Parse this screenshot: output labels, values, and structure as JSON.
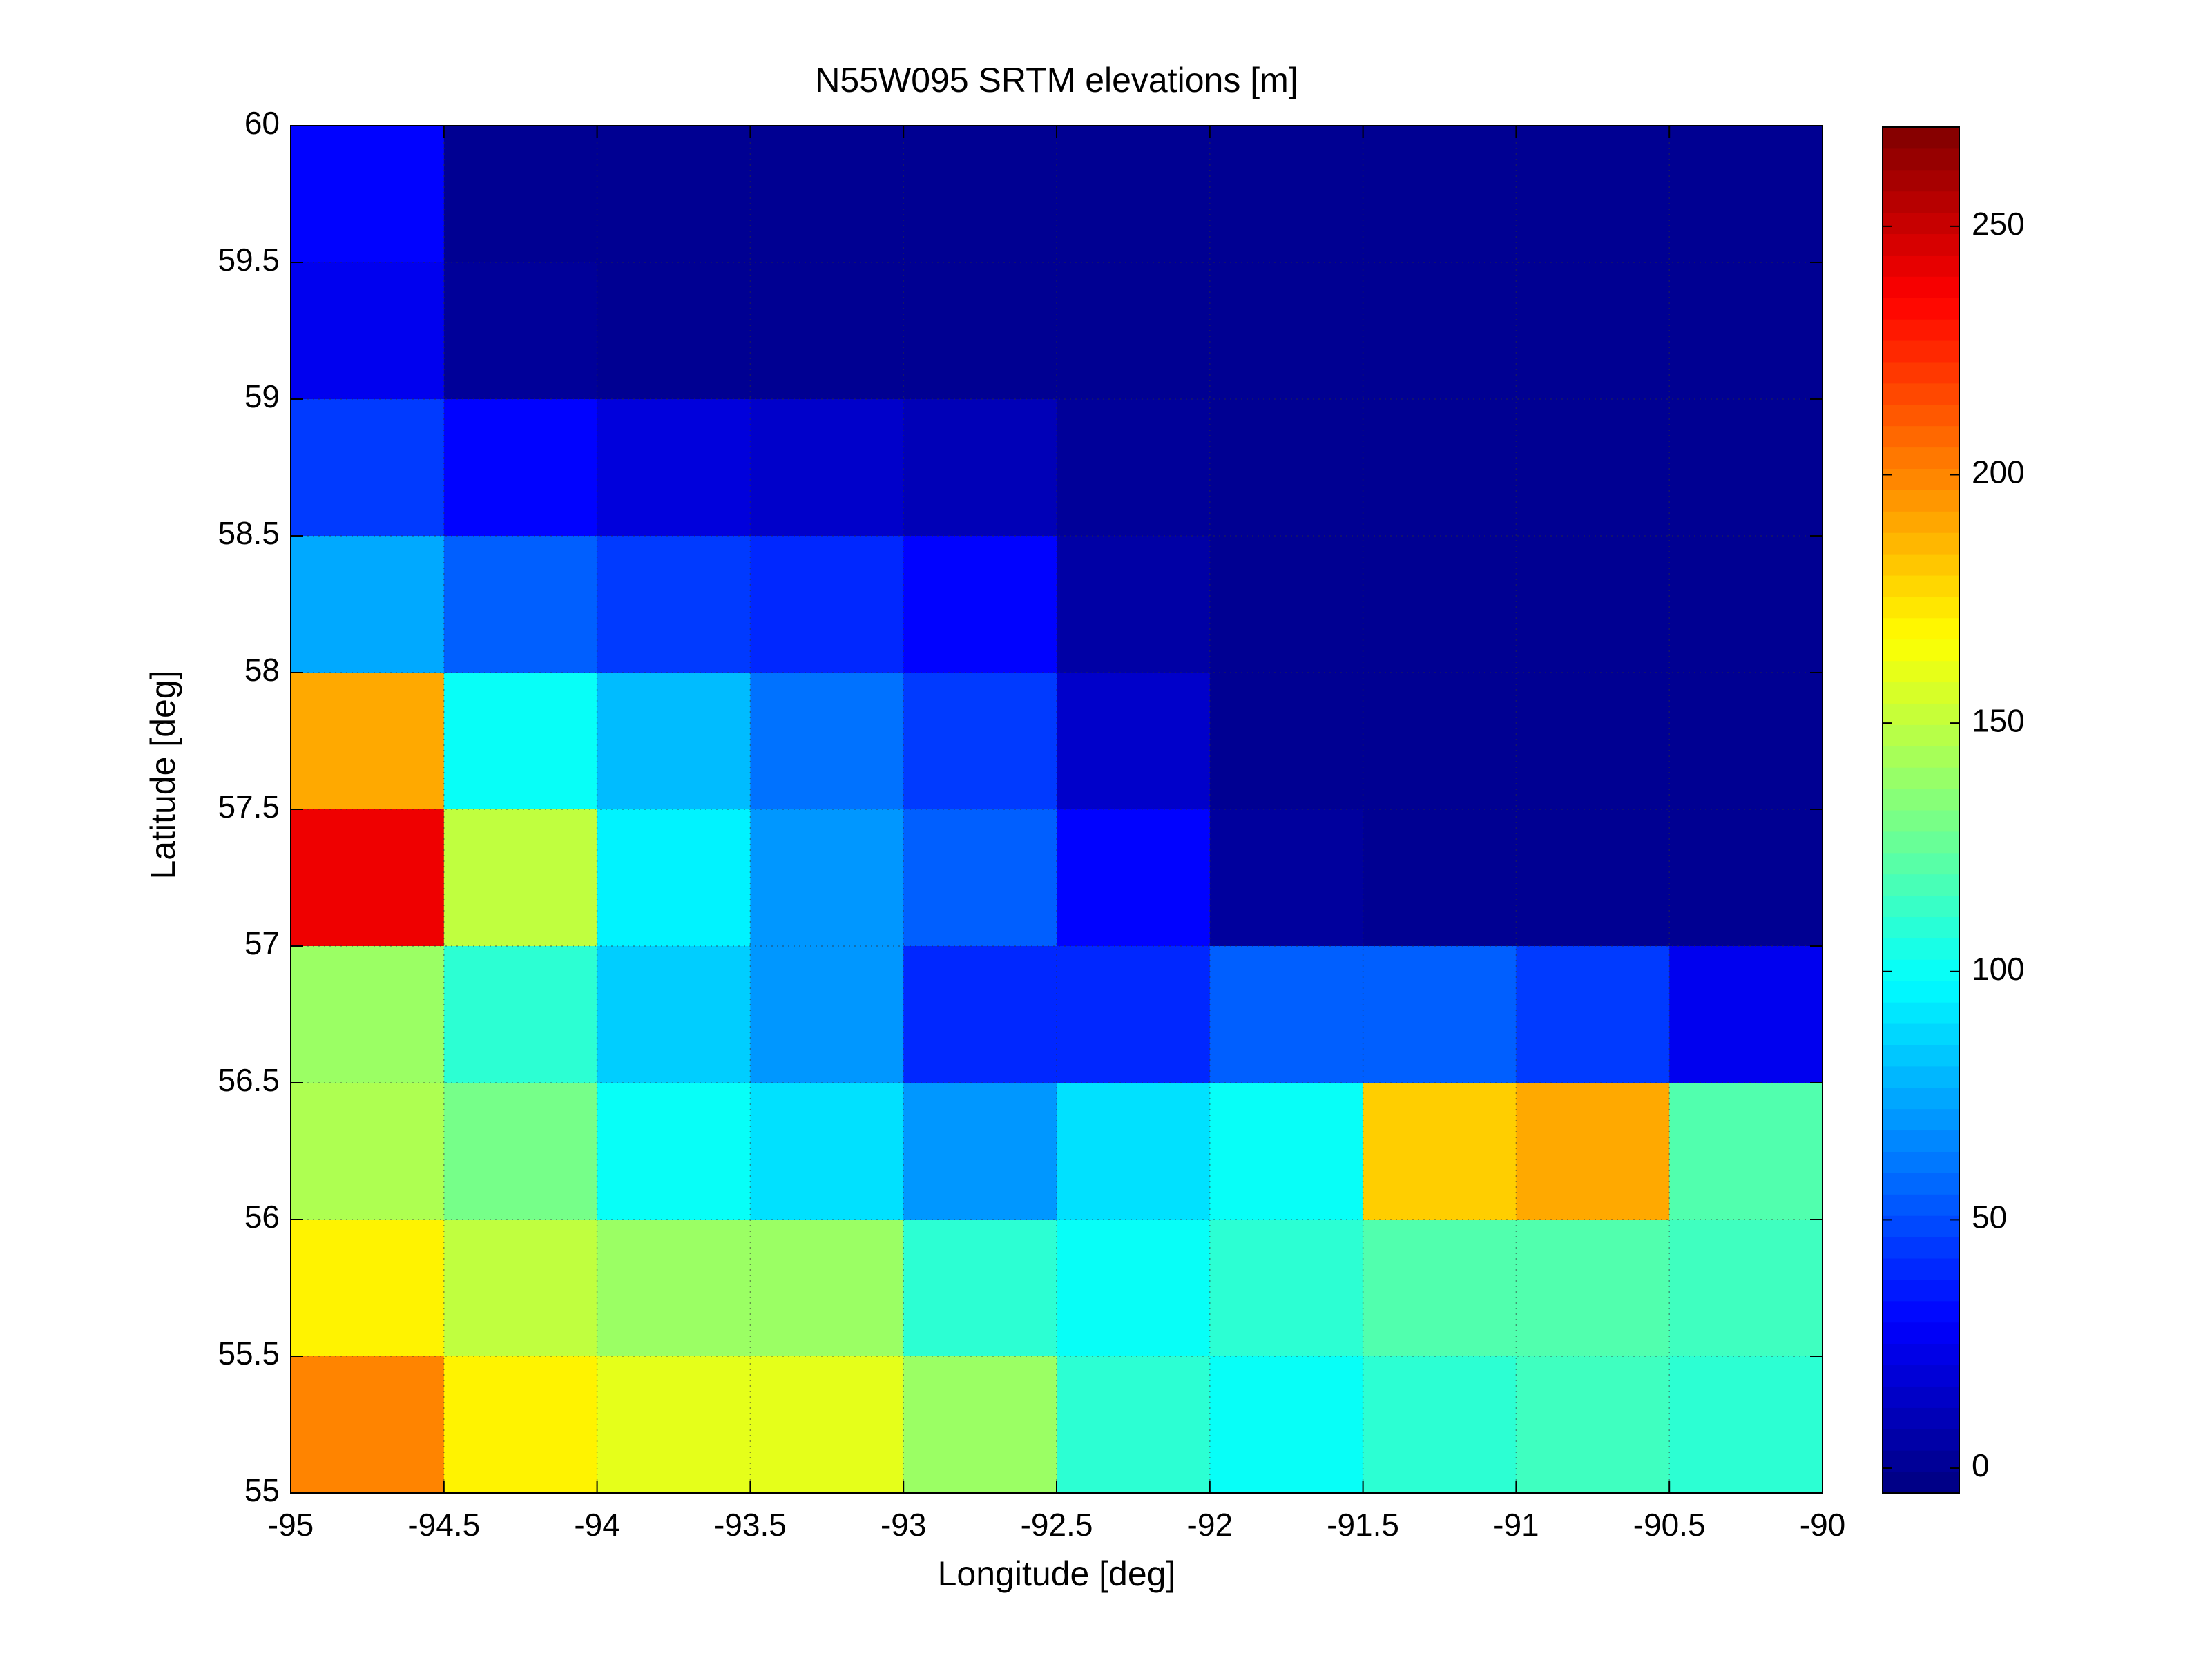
{
  "chart_data": {
    "type": "heatmap",
    "title": "N55W095 SRTM elevations [m]",
    "x_label": "Longitude [deg]",
    "y_label": "Latitude [deg]",
    "xlim": [
      -95,
      -90
    ],
    "ylim": [
      55,
      60
    ],
    "xticks": [
      -95,
      -94.5,
      -94,
      -93.5,
      -93,
      -92.5,
      -92,
      -91.5,
      -91,
      -90.5,
      -90
    ],
    "yticks": [
      55,
      55.5,
      56,
      56.5,
      57,
      57.5,
      58,
      58.5,
      59,
      59.5,
      60
    ],
    "grid": true,
    "colormap": "jet",
    "clim": [
      -5,
      270
    ],
    "cticks": [
      0,
      50,
      100,
      150,
      200,
      250
    ],
    "z": [
      [
        30,
        0,
        0,
        0,
        0,
        0,
        0,
        0,
        0,
        0
      ],
      [
        25,
        2,
        0,
        0,
        0,
        0,
        0,
        0,
        0,
        0
      ],
      [
        45,
        30,
        20,
        15,
        10,
        2,
        0,
        0,
        0,
        0
      ],
      [
        75,
        55,
        45,
        40,
        30,
        5,
        0,
        0,
        0,
        0
      ],
      [
        190,
        100,
        80,
        60,
        45,
        15,
        0,
        0,
        0,
        0
      ],
      [
        240,
        150,
        95,
        70,
        55,
        30,
        3,
        0,
        0,
        0
      ],
      [
        140,
        110,
        85,
        70,
        40,
        40,
        55,
        55,
        45,
        25
      ],
      [
        145,
        130,
        100,
        90,
        70,
        90,
        100,
        180,
        190,
        120
      ],
      [
        170,
        150,
        140,
        140,
        110,
        100,
        110,
        120,
        120,
        115
      ],
      [
        200,
        170,
        160,
        160,
        140,
        110,
        100,
        110,
        115,
        110
      ]
    ]
  }
}
